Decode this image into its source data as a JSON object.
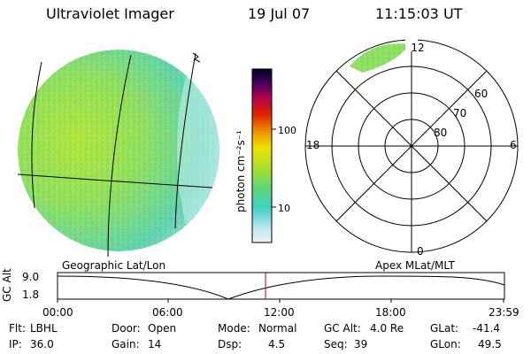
{
  "header": {
    "instrument": "Ultraviolet Imager",
    "date": "19 Jul 07",
    "time": "11:15:03 UT"
  },
  "colorbar": {
    "unit_label": "photon cm⁻²s⁻¹",
    "ticks": [
      "100",
      "10"
    ]
  },
  "polar_plot": {
    "mlt_labels": {
      "top": "12",
      "left": "18",
      "right": "6",
      "bottom": "0"
    },
    "lat_labels": [
      "60",
      "70",
      "80"
    ]
  },
  "coord_labels": {
    "left": "Geographic Lat/Lon",
    "right": "Apex MLat/MLT"
  },
  "altitude_plot": {
    "ylabel": "GC Alt",
    "yticks": [
      "9.0",
      "1.8"
    ],
    "xticks": [
      "00:00",
      "06:00",
      "12:00",
      "18:00",
      "23:59"
    ]
  },
  "info": {
    "flt_label": "Flt:",
    "flt_value": "LBHL",
    "ip_label": "IP:",
    "ip_value": "36.0",
    "door_label": "Door:",
    "door_value": "Open",
    "gain_label": "Gain:",
    "gain_value": "14",
    "mode_label": "Mode:",
    "mode_value": "Normal",
    "dsp_label": "Dsp:",
    "dsp_value": "4.5",
    "gcalt_label": "GC Alt:",
    "gcalt_value": "4.0 Re",
    "seq_label": "Seq:",
    "seq_value": "39",
    "glat_label": "GLat:",
    "glat_value": "-41.4",
    "glon_label": "GLon:",
    "glon_value": "49.5"
  },
  "colors": {
    "marker": "#c00000",
    "disk_base": "#8ee05a"
  }
}
